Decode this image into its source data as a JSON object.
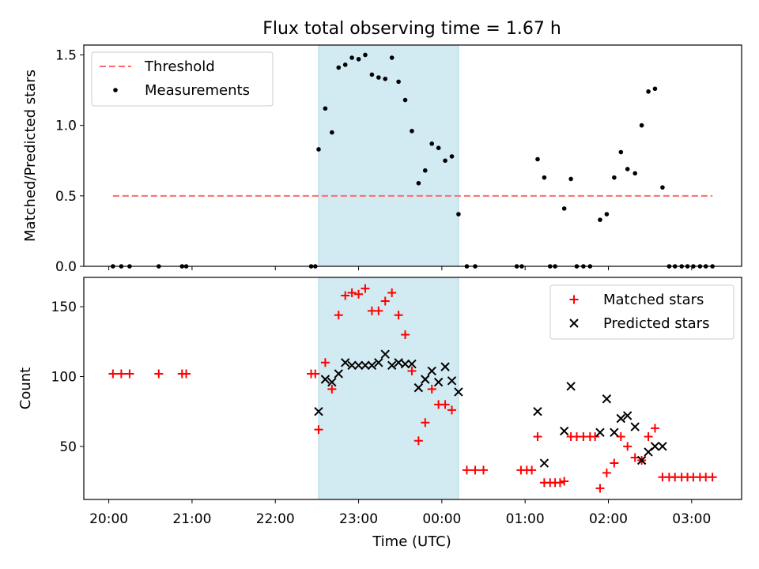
{
  "title": "Flux total observing time = 1.67 h",
  "xlabel": "Time (UTC)",
  "colors": {
    "threshold": "#ff6b6b",
    "measurements": "#000000",
    "matched": "#ff0000",
    "predicted": "#000000",
    "shade": "#add8e6"
  },
  "chart_data": [
    {
      "type": "scatter",
      "ylabel": "Matched/Predicted stars",
      "xlim": [
        19.7,
        27.6
      ],
      "ylim": [
        0,
        1.57
      ],
      "yticks": [
        0.0,
        0.5,
        1.0,
        1.5
      ],
      "ytick_labels": [
        "0.0",
        "0.5",
        "1.0",
        "1.5"
      ],
      "shaded_region": [
        22.52,
        24.2
      ],
      "legend": {
        "position": "top-left",
        "entries": [
          "Threshold",
          "Measurements"
        ]
      },
      "threshold": {
        "name": "Threshold",
        "value": 0.5,
        "x_range": [
          20.05,
          27.25
        ]
      },
      "series": [
        {
          "name": "Measurements",
          "points": [
            [
              20.05,
              0
            ],
            [
              20.15,
              0
            ],
            [
              20.25,
              0
            ],
            [
              20.6,
              0
            ],
            [
              20.88,
              0
            ],
            [
              20.93,
              0
            ],
            [
              22.43,
              0
            ],
            [
              22.48,
              0
            ],
            [
              22.52,
              0.83
            ],
            [
              22.6,
              1.12
            ],
            [
              22.68,
              0.95
            ],
            [
              22.76,
              1.41
            ],
            [
              22.84,
              1.43
            ],
            [
              22.92,
              1.48
            ],
            [
              23.0,
              1.47
            ],
            [
              23.08,
              1.5
            ],
            [
              23.16,
              1.36
            ],
            [
              23.24,
              1.34
            ],
            [
              23.32,
              1.33
            ],
            [
              23.4,
              1.48
            ],
            [
              23.48,
              1.31
            ],
            [
              23.56,
              1.18
            ],
            [
              23.64,
              0.96
            ],
            [
              23.72,
              0.59
            ],
            [
              23.8,
              0.68
            ],
            [
              23.88,
              0.87
            ],
            [
              23.96,
              0.84
            ],
            [
              24.04,
              0.75
            ],
            [
              24.12,
              0.78
            ],
            [
              24.2,
              0.37
            ],
            [
              24.3,
              0
            ],
            [
              24.4,
              0
            ],
            [
              24.9,
              0
            ],
            [
              24.96,
              0
            ],
            [
              25.3,
              0
            ],
            [
              25.36,
              0
            ],
            [
              25.15,
              0.76
            ],
            [
              25.23,
              0.63
            ],
            [
              25.47,
              0.41
            ],
            [
              25.55,
              0.62
            ],
            [
              25.62,
              0
            ],
            [
              25.7,
              0
            ],
            [
              25.78,
              0
            ],
            [
              25.9,
              0.33
            ],
            [
              25.98,
              0.37
            ],
            [
              26.07,
              0.63
            ],
            [
              26.15,
              0.81
            ],
            [
              26.23,
              0.69
            ],
            [
              26.32,
              0.66
            ],
            [
              26.4,
              1.0
            ],
            [
              26.48,
              1.24
            ],
            [
              26.56,
              1.26
            ],
            [
              26.65,
              0.56
            ],
            [
              26.73,
              0
            ],
            [
              26.8,
              0
            ],
            [
              26.88,
              0
            ],
            [
              26.95,
              0
            ],
            [
              27.02,
              0
            ],
            [
              27.1,
              0
            ],
            [
              27.17,
              0
            ],
            [
              27.25,
              0
            ]
          ]
        }
      ]
    },
    {
      "type": "scatter",
      "xlabel": "Time (UTC)",
      "ylabel": "Count",
      "xlim": [
        19.7,
        27.6
      ],
      "ylim": [
        12,
        171
      ],
      "yticks": [
        50,
        100,
        150
      ],
      "ytick_labels": [
        "50",
        "100",
        "150"
      ],
      "xticks": [
        20,
        21,
        22,
        23,
        24,
        25,
        26,
        27
      ],
      "xtick_labels": [
        "20:00",
        "21:00",
        "22:00",
        "23:00",
        "00:00",
        "01:00",
        "02:00",
        "03:00"
      ],
      "shaded_region": [
        22.52,
        24.2
      ],
      "legend": {
        "position": "top-right",
        "entries": [
          "Matched stars",
          "Predicted stars"
        ]
      },
      "series": [
        {
          "name": "Matched stars",
          "marker": "plus",
          "points": [
            [
              20.05,
              102
            ],
            [
              20.15,
              102
            ],
            [
              20.25,
              102
            ],
            [
              20.6,
              102
            ],
            [
              20.88,
              102
            ],
            [
              20.93,
              102
            ],
            [
              22.43,
              102
            ],
            [
              22.48,
              102
            ],
            [
              22.52,
              62
            ],
            [
              22.6,
              110
            ],
            [
              22.68,
              91
            ],
            [
              22.76,
              144
            ],
            [
              22.84,
              158
            ],
            [
              22.92,
              160
            ],
            [
              23.0,
              159
            ],
            [
              23.08,
              163
            ],
            [
              23.16,
              147
            ],
            [
              23.24,
              147
            ],
            [
              23.32,
              154
            ],
            [
              23.4,
              160
            ],
            [
              23.48,
              144
            ],
            [
              23.56,
              130
            ],
            [
              23.64,
              104
            ],
            [
              23.72,
              54
            ],
            [
              23.8,
              67
            ],
            [
              23.88,
              91
            ],
            [
              23.96,
              80
            ],
            [
              24.04,
              80
            ],
            [
              24.12,
              76
            ],
            [
              24.3,
              33
            ],
            [
              24.4,
              33
            ],
            [
              24.5,
              33
            ],
            [
              24.95,
              33
            ],
            [
              25.02,
              33
            ],
            [
              25.08,
              33
            ],
            [
              25.15,
              57
            ],
            [
              25.23,
              24
            ],
            [
              25.3,
              24
            ],
            [
              25.36,
              24
            ],
            [
              25.42,
              24
            ],
            [
              25.47,
              25
            ],
            [
              25.55,
              57
            ],
            [
              25.62,
              57
            ],
            [
              25.7,
              57
            ],
            [
              25.78,
              57
            ],
            [
              25.84,
              57
            ],
            [
              25.9,
              20
            ],
            [
              25.98,
              31
            ],
            [
              26.07,
              38
            ],
            [
              26.15,
              57
            ],
            [
              26.23,
              50
            ],
            [
              26.32,
              42
            ],
            [
              26.4,
              40
            ],
            [
              26.48,
              57
            ],
            [
              26.56,
              63
            ],
            [
              26.65,
              28
            ],
            [
              26.73,
              28
            ],
            [
              26.8,
              28
            ],
            [
              26.88,
              28
            ],
            [
              26.95,
              28
            ],
            [
              27.02,
              28
            ],
            [
              27.1,
              28
            ],
            [
              27.17,
              28
            ],
            [
              27.25,
              28
            ]
          ]
        },
        {
          "name": "Predicted stars",
          "marker": "x",
          "points": [
            [
              22.52,
              75
            ],
            [
              22.6,
              98
            ],
            [
              22.68,
              96
            ],
            [
              22.76,
              102
            ],
            [
              22.84,
              110
            ],
            [
              22.92,
              108
            ],
            [
              23.0,
              108
            ],
            [
              23.08,
              108
            ],
            [
              23.16,
              108
            ],
            [
              23.24,
              110
            ],
            [
              23.32,
              116
            ],
            [
              23.4,
              108
            ],
            [
              23.48,
              110
            ],
            [
              23.56,
              109
            ],
            [
              23.64,
              109
            ],
            [
              23.72,
              92
            ],
            [
              23.8,
              98
            ],
            [
              23.88,
              104
            ],
            [
              23.96,
              96
            ],
            [
              24.04,
              107
            ],
            [
              24.12,
              97
            ],
            [
              24.2,
              89
            ],
            [
              25.15,
              75
            ],
            [
              25.23,
              38
            ],
            [
              25.47,
              61
            ],
            [
              25.55,
              93
            ],
            [
              25.9,
              60
            ],
            [
              25.98,
              84
            ],
            [
              26.07,
              60
            ],
            [
              26.15,
              70
            ],
            [
              26.23,
              72
            ],
            [
              26.32,
              64
            ],
            [
              26.4,
              40
            ],
            [
              26.48,
              46
            ],
            [
              26.56,
              50
            ],
            [
              26.65,
              50
            ]
          ]
        }
      ]
    }
  ]
}
